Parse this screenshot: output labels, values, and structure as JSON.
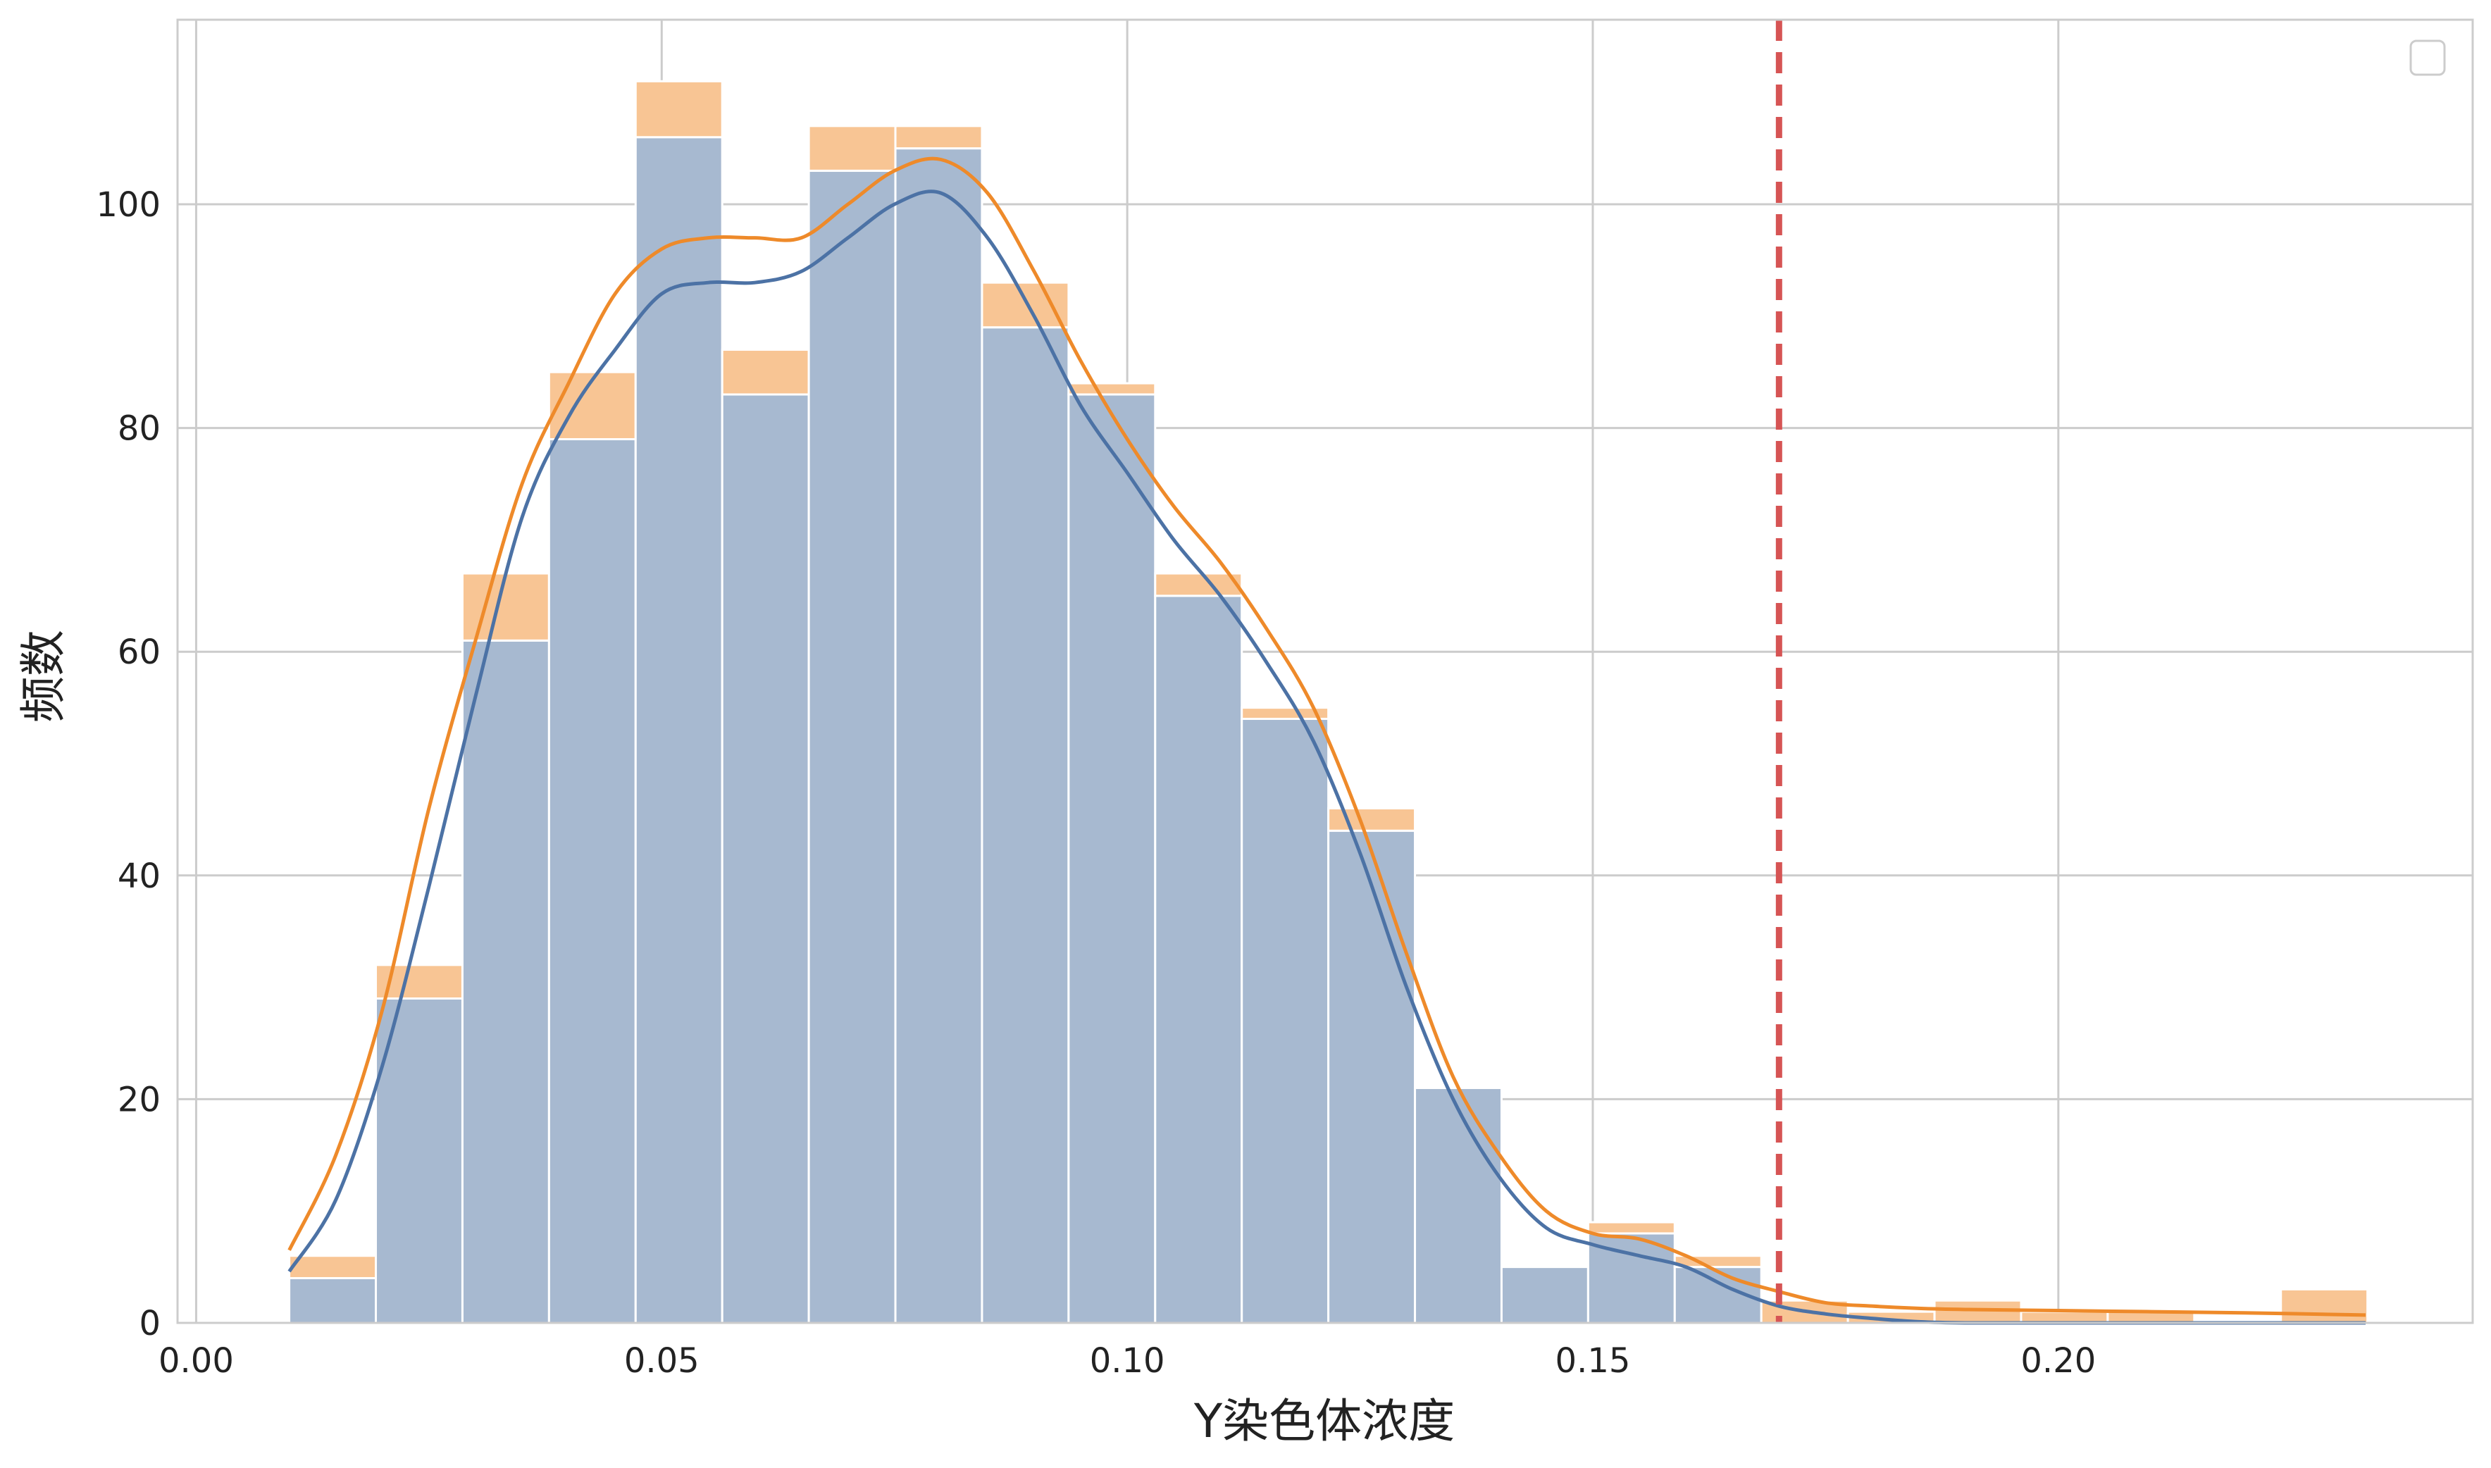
{
  "chart_data": {
    "type": "bar",
    "subtype": "stacked-histogram-with-kde",
    "xlabel": "Y染色体浓度",
    "ylabel": "频数",
    "xlim": [
      -0.002,
      0.2445
    ],
    "ylim": [
      0,
      116.5
    ],
    "xticks": [
      0.0,
      0.05,
      0.1,
      0.15,
      0.2
    ],
    "xtick_labels": [
      "0.00",
      "0.05",
      "0.10",
      "0.15",
      "0.20"
    ],
    "yticks": [
      0,
      20,
      40,
      60,
      80,
      100
    ],
    "ytick_labels": [
      "0",
      "20",
      "40",
      "60",
      "80",
      "100"
    ],
    "grid": true,
    "legend_placement": "top-right",
    "legend_entries": [],
    "bin_edges": [
      0.01,
      0.0193,
      0.0286,
      0.0379,
      0.0472,
      0.0565,
      0.0658,
      0.0751,
      0.0844,
      0.0937,
      0.103,
      0.1123,
      0.1216,
      0.1309,
      0.1402,
      0.1495,
      0.1588,
      0.1681,
      0.1774,
      0.1867,
      0.196,
      0.2053,
      0.2146,
      0.2239,
      0.2332
    ],
    "series": [
      {
        "color": "#4c72a5",
        "fill": "#a7b9d0",
        "values": [
          4,
          29,
          61,
          79,
          106,
          83,
          103,
          105,
          89,
          83,
          65,
          54,
          44,
          21,
          5,
          8,
          5,
          0,
          0,
          0,
          0,
          0,
          0,
          0
        ],
        "kde": {
          "x": [
            0.01,
            0.015,
            0.02,
            0.025,
            0.03,
            0.035,
            0.04,
            0.045,
            0.05,
            0.055,
            0.06,
            0.065,
            0.07,
            0.075,
            0.08,
            0.085,
            0.09,
            0.095,
            0.1,
            0.105,
            0.11,
            0.115,
            0.12,
            0.125,
            0.13,
            0.135,
            0.14,
            0.145,
            0.15,
            0.155,
            0.16,
            0.165,
            0.17,
            0.175,
            0.18,
            0.185,
            0.19,
            0.2,
            0.21,
            0.22,
            0.233
          ],
          "y": [
            4.6,
            11,
            23,
            39,
            56,
            72,
            81,
            87,
            92,
            93,
            93,
            94,
            97,
            100,
            101,
            97,
            90,
            82,
            76,
            70,
            65,
            59,
            52,
            42,
            30,
            20,
            13,
            8.5,
            7,
            6,
            5,
            3,
            1.5,
            0.8,
            0.4,
            0.1,
            0,
            0,
            0,
            0,
            0
          ]
        }
      },
      {
        "color": "#ee8a2a",
        "fill": "#f8c594",
        "values": [
          2,
          3,
          6,
          6,
          5,
          4,
          4,
          2,
          4,
          1,
          2,
          1,
          2,
          0,
          0,
          1,
          1,
          2,
          1,
          2,
          1,
          1,
          0,
          3
        ],
        "kde": {
          "x": [
            0.01,
            0.015,
            0.02,
            0.025,
            0.03,
            0.035,
            0.04,
            0.045,
            0.05,
            0.055,
            0.06,
            0.065,
            0.07,
            0.075,
            0.08,
            0.085,
            0.09,
            0.095,
            0.1,
            0.105,
            0.11,
            0.115,
            0.12,
            0.125,
            0.13,
            0.135,
            0.14,
            0.145,
            0.15,
            0.155,
            0.16,
            0.165,
            0.17,
            0.175,
            0.18,
            0.185,
            0.19,
            0.2,
            0.21,
            0.22,
            0.233
          ],
          "y": [
            6.5,
            15,
            28,
            46,
            61,
            75,
            84,
            92,
            96,
            97,
            97,
            97,
            100,
            103,
            104,
            101,
            94,
            86,
            79,
            73,
            68,
            62,
            55,
            45,
            33,
            22,
            15,
            10,
            8,
            7.5,
            6,
            4,
            2.8,
            1.8,
            1.5,
            1.3,
            1.2,
            1.1,
            1,
            0.9,
            0.7
          ]
        }
      }
    ],
    "reference_lines": [
      {
        "x": 0.17,
        "color": "#d65454",
        "style": "dashed"
      }
    ]
  }
}
